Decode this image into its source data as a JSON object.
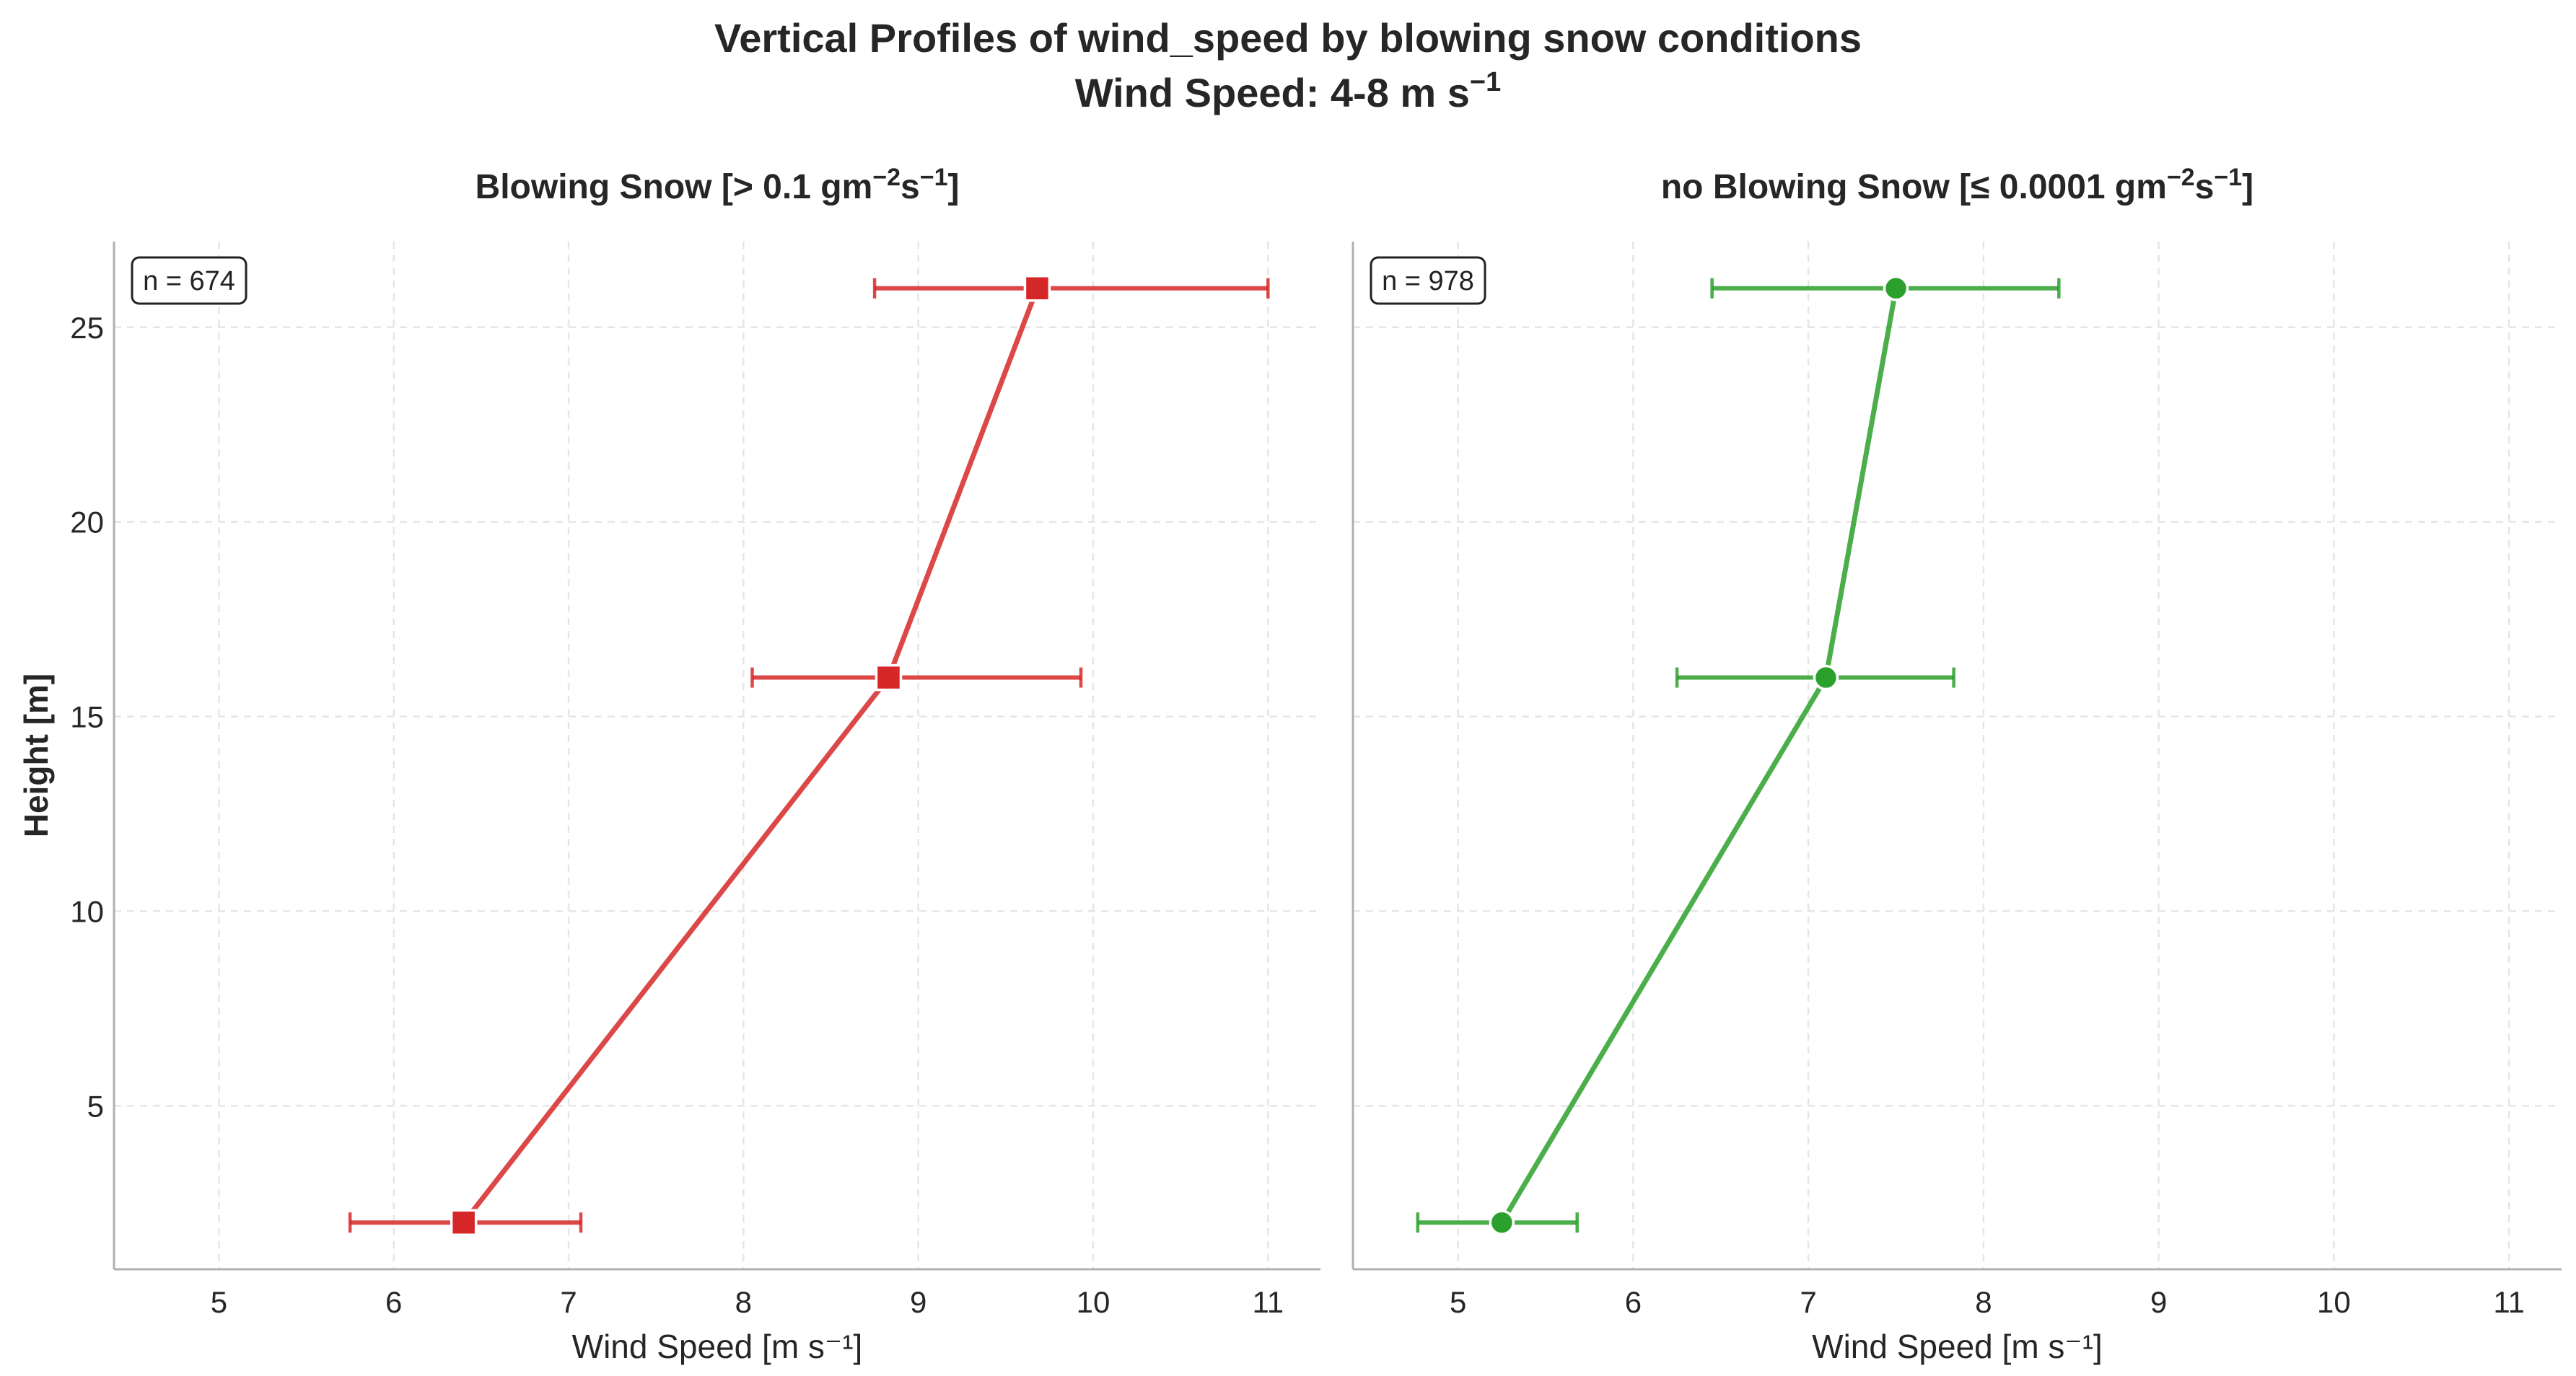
{
  "suptitle": {
    "line1": "Vertical Profiles of wind_speed by blowing snow conditions",
    "line2_prefix": "Wind Speed: 4-8 m s",
    "line2_exp": "−1"
  },
  "chart_data": [
    {
      "type": "line",
      "title_prefix": "Blowing Snow [> 0.1 gm",
      "title_exp1": "−2",
      "title_mid": "s",
      "title_exp2": "−1",
      "title_suffix": "]",
      "xlabel": "Wind Speed [m s⁻¹]",
      "ylabel": "Height [m]",
      "annotation": "n = 674",
      "xlim": [
        4.4,
        11.3
      ],
      "ylim": [
        0.8,
        27.2
      ],
      "xticks": [
        5,
        6,
        7,
        8,
        9,
        10,
        11
      ],
      "yticks": [
        5,
        10,
        15,
        20,
        25
      ],
      "grid": true,
      "marker": "square",
      "color": "#d62728",
      "series": [
        {
          "x": [
            6.4,
            8.83,
            9.68
          ],
          "y": [
            2,
            16,
            26
          ],
          "xerr_low": [
            5.75,
            8.05,
            8.75
          ],
          "xerr_high": [
            7.07,
            9.93,
            11.0
          ]
        }
      ]
    },
    {
      "type": "line",
      "title_prefix": "no Blowing Snow [≤ 0.0001 gm",
      "title_exp1": "−2",
      "title_mid": "s",
      "title_exp2": "−1",
      "title_suffix": "]",
      "xlabel": "Wind Speed [m s⁻¹]",
      "ylabel": "",
      "annotation": "n = 978",
      "xlim": [
        4.4,
        11.3
      ],
      "ylim": [
        0.8,
        27.2
      ],
      "xticks": [
        5,
        6,
        7,
        8,
        9,
        10,
        11
      ],
      "yticks": [
        5,
        10,
        15,
        20,
        25
      ],
      "grid": true,
      "marker": "circle",
      "color": "#2ca02c",
      "series": [
        {
          "x": [
            5.25,
            7.1,
            7.5
          ],
          "y": [
            2,
            16,
            26
          ],
          "xerr_low": [
            4.77,
            6.25,
            6.45
          ],
          "xerr_high": [
            5.68,
            7.83,
            8.43
          ]
        }
      ]
    }
  ]
}
